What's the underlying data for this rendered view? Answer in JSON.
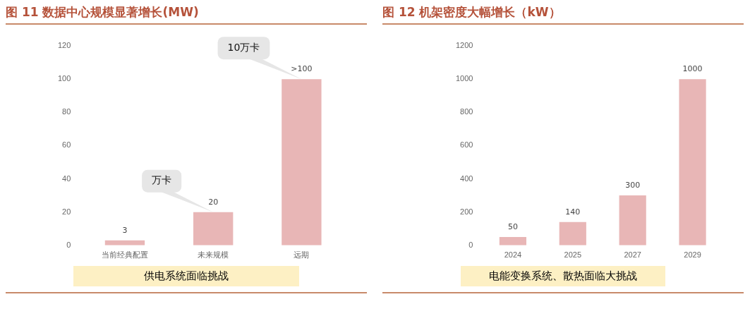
{
  "chart_data": [
    {
      "type": "bar",
      "title": "图 11  数据中心规模显著增长(MW)",
      "categories": [
        "当前经典配置",
        "未来规模",
        "远期"
      ],
      "values": [
        3,
        20,
        100
      ],
      "value_labels": [
        "3",
        "20",
        ">100"
      ],
      "color": "#e8b6b6",
      "ylim": [
        0,
        120
      ],
      "yticks": [
        0,
        20,
        40,
        60,
        80,
        100,
        120
      ],
      "grid": false,
      "legend": false,
      "annotations": [
        {
          "text": "万卡",
          "x": "未来规模",
          "y": 20
        },
        {
          "text": "10万卡",
          "x": "远期",
          "y": 100
        },
        "供电系统面临挑战"
      ]
    },
    {
      "type": "bar",
      "title": "图 12  机架密度大幅增长（kW）",
      "categories": [
        "2024",
        "2025",
        "2027",
        "2029"
      ],
      "values": [
        50,
        140,
        300,
        1000
      ],
      "data_labels": true,
      "color": "#e8b6b6",
      "ylim": [
        0,
        1200
      ],
      "yticks": [
        0,
        200,
        400,
        600,
        800,
        1000,
        1200
      ],
      "grid": false,
      "legend": false,
      "annotations": [
        "电能变换系统、散热面临大挑战"
      ]
    }
  ]
}
